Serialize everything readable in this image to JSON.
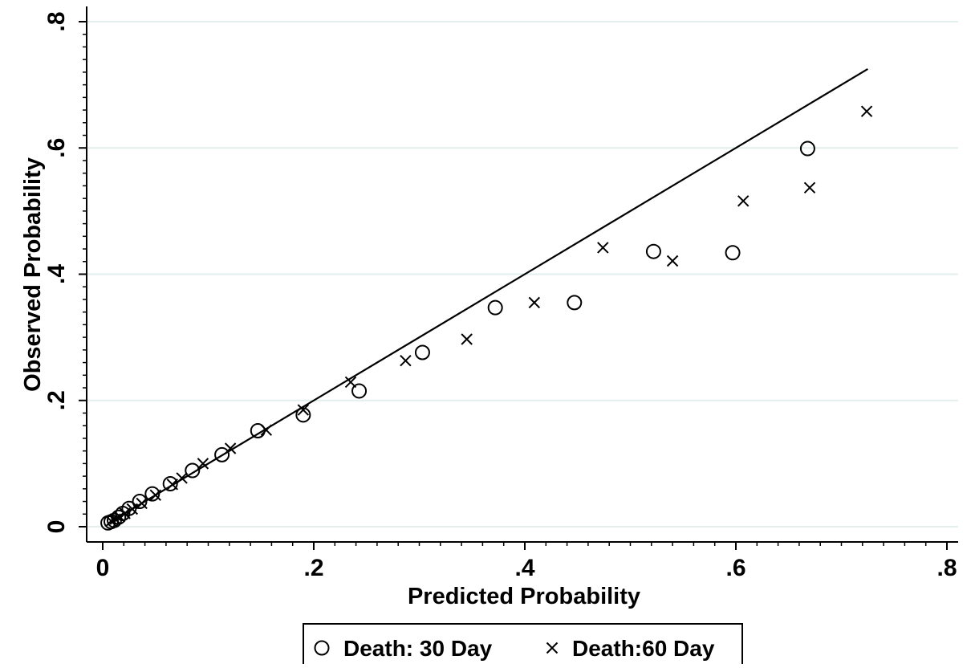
{
  "chart_data": {
    "type": "scatter",
    "title": "",
    "xlabel": "Predicted Probability",
    "ylabel": "Observed Probability",
    "xlim": [
      0,
      0.8
    ],
    "ylim": [
      0,
      0.8
    ],
    "x_ticks": [
      {
        "value": 0,
        "label": "0"
      },
      {
        "value": 0.2,
        "label": ".2"
      },
      {
        "value": 0.4,
        "label": ".4"
      },
      {
        "value": 0.6,
        "label": ".6"
      },
      {
        "value": 0.8,
        "label": ".8"
      }
    ],
    "y_ticks": [
      {
        "value": 0,
        "label": "0"
      },
      {
        "value": 0.2,
        "label": ".2"
      },
      {
        "value": 0.4,
        "label": ".4"
      },
      {
        "value": 0.6,
        "label": ".6"
      },
      {
        "value": 0.8,
        "label": ".8"
      }
    ],
    "grid": "horizontal",
    "reference_line": {
      "x": [
        0.005,
        0.725
      ],
      "y": [
        0.005,
        0.725
      ]
    },
    "legend_position": "bottom",
    "series": [
      {
        "name": "Death: 30 Day",
        "marker": "circle",
        "points": [
          [
            0.005,
            0.006
          ],
          [
            0.008,
            0.008
          ],
          [
            0.011,
            0.01
          ],
          [
            0.015,
            0.015
          ],
          [
            0.019,
            0.021
          ],
          [
            0.025,
            0.029
          ],
          [
            0.035,
            0.04
          ],
          [
            0.047,
            0.052
          ],
          [
            0.064,
            0.068
          ],
          [
            0.085,
            0.089
          ],
          [
            0.113,
            0.114
          ],
          [
            0.147,
            0.152
          ],
          [
            0.19,
            0.177
          ],
          [
            0.243,
            0.215
          ],
          [
            0.303,
            0.276
          ],
          [
            0.372,
            0.347
          ],
          [
            0.447,
            0.355
          ],
          [
            0.522,
            0.436
          ],
          [
            0.597,
            0.434
          ],
          [
            0.668,
            0.599
          ]
        ]
      },
      {
        "name": "Death:60 Day",
        "marker": "x",
        "points": [
          [
            0.008,
            0.009
          ],
          [
            0.012,
            0.012
          ],
          [
            0.016,
            0.016
          ],
          [
            0.021,
            0.021
          ],
          [
            0.028,
            0.028
          ],
          [
            0.037,
            0.037
          ],
          [
            0.05,
            0.05
          ],
          [
            0.066,
            0.067
          ],
          [
            0.075,
            0.077
          ],
          [
            0.095,
            0.1
          ],
          [
            0.121,
            0.124
          ],
          [
            0.155,
            0.153
          ],
          [
            0.19,
            0.185
          ],
          [
            0.235,
            0.229
          ],
          [
            0.287,
            0.263
          ],
          [
            0.345,
            0.297
          ],
          [
            0.409,
            0.355
          ],
          [
            0.474,
            0.442
          ],
          [
            0.54,
            0.421
          ],
          [
            0.607,
            0.516
          ],
          [
            0.67,
            0.537
          ],
          [
            0.724,
            0.658
          ]
        ]
      }
    ]
  }
}
